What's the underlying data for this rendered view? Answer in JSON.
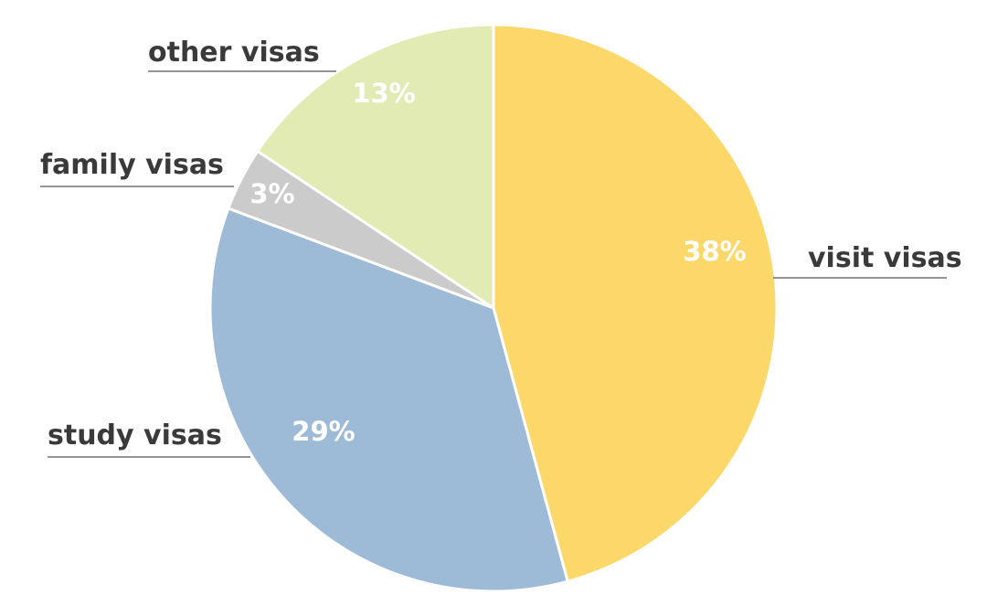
{
  "chart_data": {
    "type": "pie",
    "slices": [
      {
        "label": "visit visas",
        "value": 38,
        "value_label": "38%",
        "color": "#FCD86B"
      },
      {
        "label": "study visas",
        "value": 29,
        "value_label": "29%",
        "color": "#9DBAD7"
      },
      {
        "label": "family visas",
        "value": 3,
        "value_label": "3%",
        "color": "#CBCBCB"
      },
      {
        "label": "other visas",
        "value": 13,
        "value_label": "13%",
        "color": "#E2EBB3"
      }
    ],
    "start_angle_deg": 0,
    "direction": "clockwise",
    "title": "",
    "legend": "none (labels placed next to slices with leader lines)"
  }
}
